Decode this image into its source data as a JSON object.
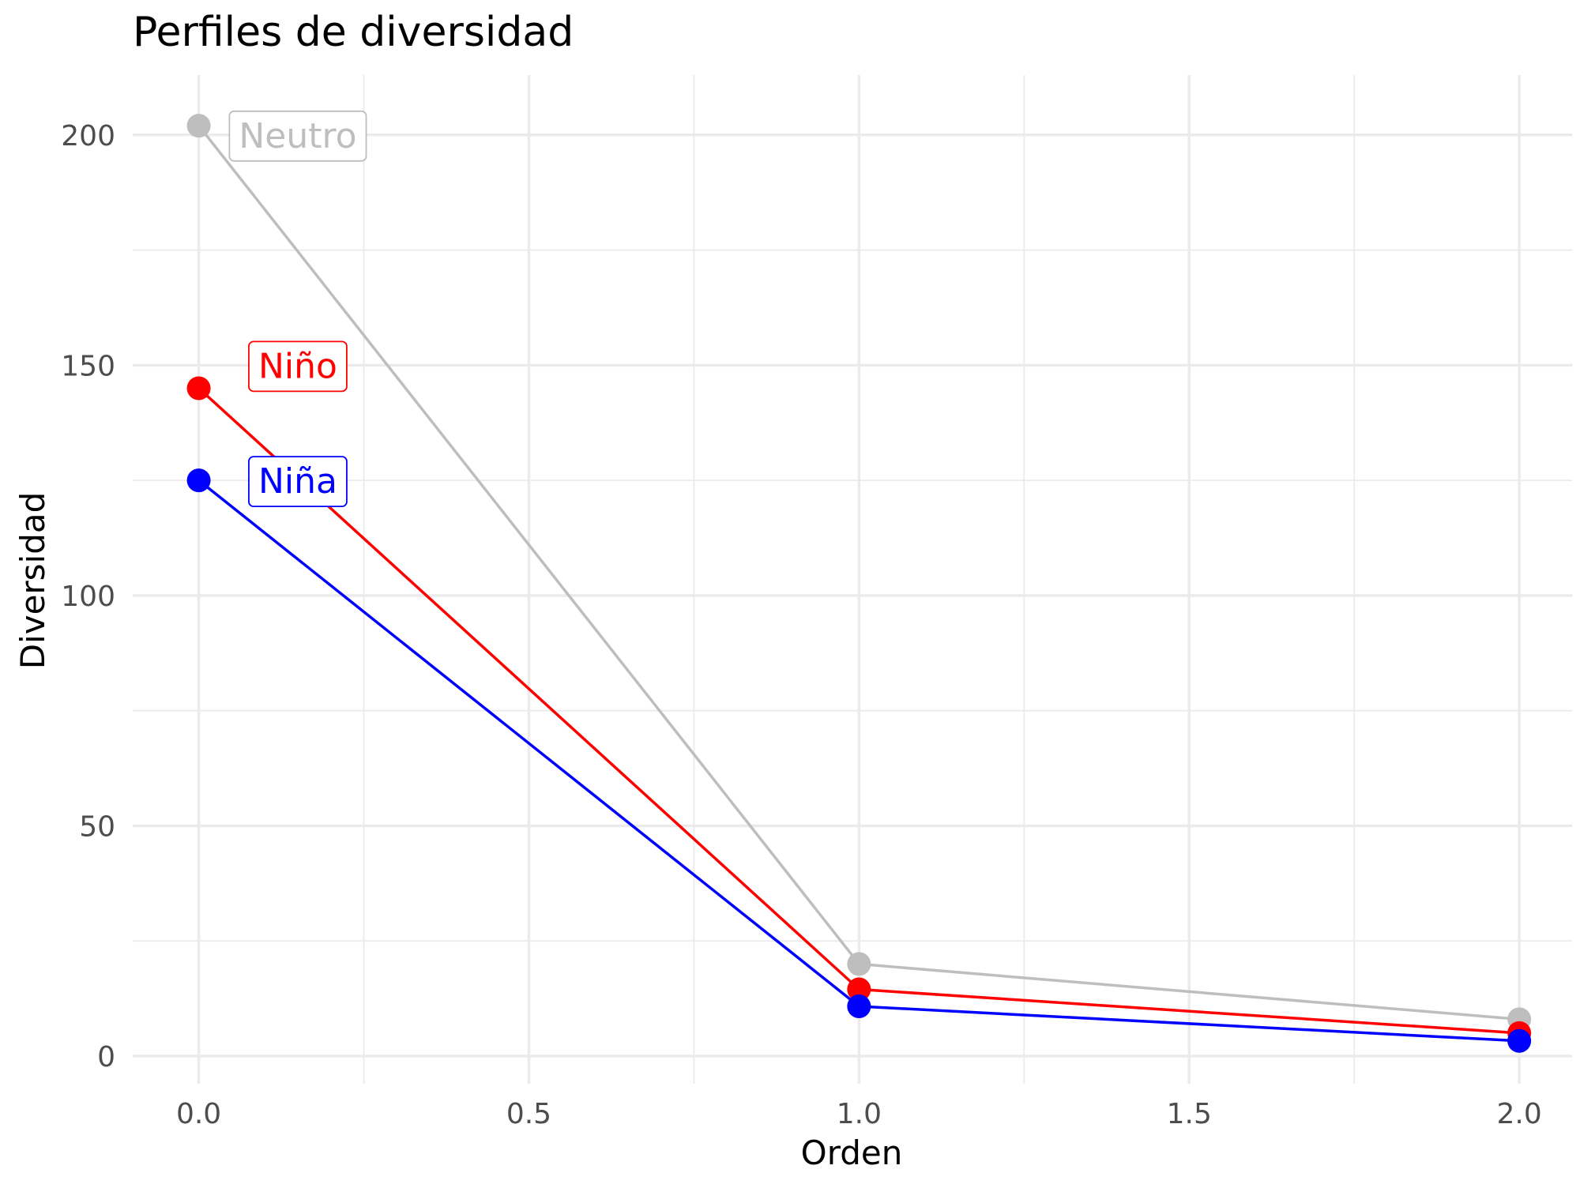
{
  "chart_data": {
    "type": "line",
    "title": "Perfiles de diversidad",
    "xlabel": "Orden",
    "ylabel": "Diversidad",
    "xlim": [
      -0.1,
      2.08
    ],
    "ylim": [
      -6,
      213
    ],
    "x_ticks": [
      0.0,
      0.5,
      1.0,
      1.5,
      2.0
    ],
    "x_tick_labels": [
      "0.0",
      "0.5",
      "1.0",
      "1.5",
      "2.0"
    ],
    "x_minor": [
      0.25,
      0.75,
      1.25,
      1.75
    ],
    "y_ticks": [
      0,
      50,
      100,
      150,
      200
    ],
    "y_tick_labels": [
      "0",
      "50",
      "100",
      "150",
      "200"
    ],
    "y_minor": [
      25,
      75,
      125,
      175
    ],
    "grid": true,
    "legend": "direct labels",
    "series": [
      {
        "name": "Neutro",
        "color": "#BEBEBE",
        "x": [
          0,
          1,
          2
        ],
        "y": [
          202,
          20,
          8
        ],
        "label_value": [
          0.15,
          200
        ]
      },
      {
        "name": "Niño",
        "color": "#FF0000",
        "x": [
          0,
          1,
          2
        ],
        "y": [
          145,
          14.5,
          5
        ],
        "label_value": [
          0.15,
          150
        ]
      },
      {
        "name": "Niña",
        "color": "#0000FF",
        "x": [
          0,
          1,
          2
        ],
        "y": [
          125,
          10.8,
          3.3
        ],
        "label_value": [
          0.15,
          125
        ]
      }
    ]
  }
}
